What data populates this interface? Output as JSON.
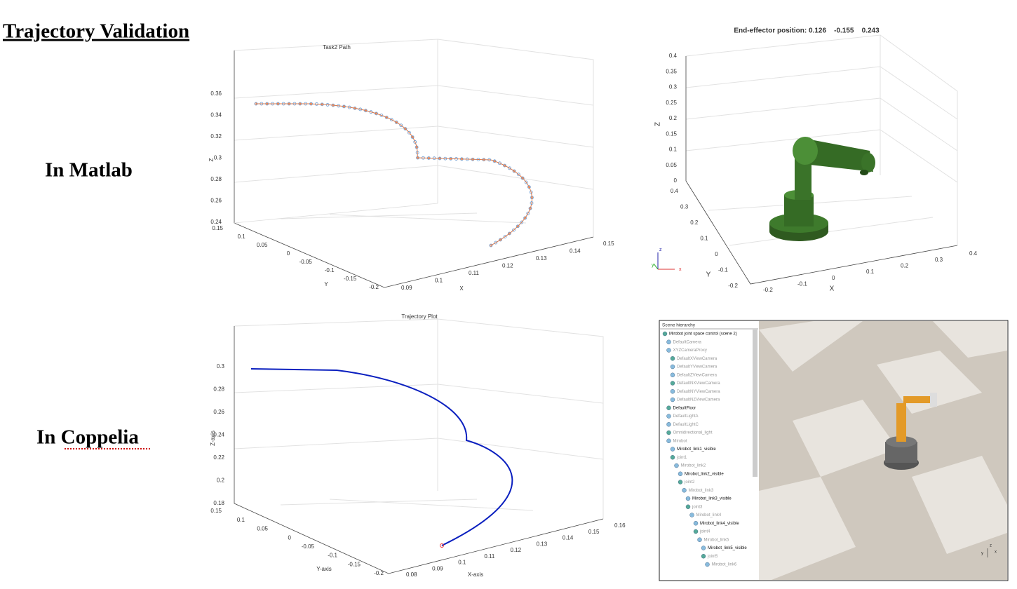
{
  "header": {
    "title": "Trajectory Validation"
  },
  "rows": [
    {
      "label": "In Matlab"
    },
    {
      "label": "In Coppelia"
    }
  ],
  "plots": [
    {
      "title": "Task2 Path",
      "zlabel": "Z",
      "ylabel": "Y",
      "xlabel": "X",
      "zticks": [
        0.36,
        0.34,
        0.32,
        0.3,
        0.28,
        0.26,
        0.24
      ],
      "yticks": [
        0.15,
        0.1,
        0.05,
        0,
        -0.05,
        -0.1,
        -0.15,
        -0.2
      ],
      "xticks": [
        0.09,
        0.1,
        0.11,
        0.12,
        0.13,
        0.14,
        0.15
      ]
    },
    {
      "title": "End-effector position: 0.126    -0.155    0.243",
      "zlabel": "Z",
      "ylabel": "Y",
      "xlabel": "X",
      "zticks": [
        0.4,
        0.35,
        0.3,
        0.25,
        0.2,
        0.15,
        0.1,
        0.05,
        0
      ],
      "yticks": [
        0.4,
        0.3,
        0.2,
        0.1,
        0,
        -0.1,
        -0.2
      ],
      "xticks": [
        -0.2,
        -0.1,
        0,
        0.1,
        0.2,
        0.3,
        0.4
      ],
      "triad": [
        "z",
        "x",
        "y"
      ]
    },
    {
      "title": "Trajectory Plot",
      "zlabel": "Z-axis",
      "ylabel": "Y-axis",
      "xlabel": "X-axis",
      "zticks": [
        0.3,
        0.28,
        0.26,
        0.24,
        0.22,
        0.2,
        0.18
      ],
      "yticks": [
        0.15,
        0.1,
        0.05,
        0,
        -0.05,
        -0.1,
        -0.15,
        -0.2
      ],
      "xticks": [
        0.08,
        0.09,
        0.1,
        0.11,
        0.12,
        0.13,
        0.14,
        0.15,
        0.16
      ]
    }
  ],
  "coppelia": {
    "panel_title": "Scene hierarchy",
    "items": [
      "Mirobot joint space control (scene 2)",
      "DefaultCamera",
      "XYZCameraProxy",
      "DefaultXViewCamera",
      "DefaultYViewCamera",
      "DefaultZViewCamera",
      "DefaultNXViewCamera",
      "DefaultNYViewCamera",
      "DefaultNZViewCamera",
      "DefaultFloor",
      "DefaultLightA",
      "DefaultLightC",
      "Omnidirectional_light",
      "Mirobot",
      "Mirobot_link1_visible",
      "joint1",
      "Mirobot_link2",
      "Mirobot_link2_visible",
      "joint2",
      "Mirobot_link3",
      "Mirobot_link3_visible",
      "joint3",
      "Mirobot_link4",
      "Mirobot_link4_visible",
      "joint4",
      "Mirobot_link5",
      "Mirobot_link5_visible",
      "joint5",
      "Mirobot_link6"
    ],
    "triad": [
      "z",
      "y",
      "x"
    ]
  }
}
